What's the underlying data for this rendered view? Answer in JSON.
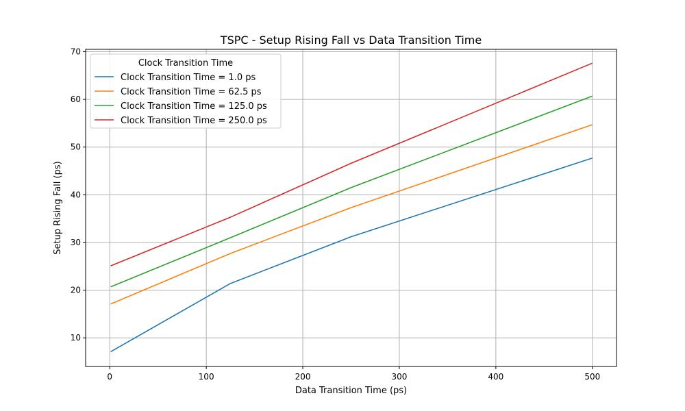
{
  "chart_data": {
    "type": "line",
    "title": "TSPC - Setup Rising Fall vs Data Transition Time",
    "xlabel": "Data Transition Time (ps)",
    "ylabel": "Setup Rising Fall (ps)",
    "x": [
      1.0,
      125.0,
      250.0,
      500.0
    ],
    "xlim": [
      -25,
      525
    ],
    "ylim": [
      4,
      70.5
    ],
    "xticks": [
      0,
      100,
      200,
      300,
      400,
      500
    ],
    "yticks": [
      10,
      20,
      30,
      40,
      50,
      60,
      70
    ],
    "grid": true,
    "legend": {
      "title": "Clock Transition Time",
      "position": "top-left"
    },
    "series": [
      {
        "name": "Clock Transition Time = 1.0 ps",
        "color": "#1f77b4",
        "values": [
          7.1,
          21.4,
          31.2,
          47.7
        ]
      },
      {
        "name": "Clock Transition Time = 62.5 ps",
        "color": "#ff7f0e",
        "values": [
          17.1,
          27.7,
          37.3,
          54.7
        ]
      },
      {
        "name": "Clock Transition Time = 125.0 ps",
        "color": "#2ca02c",
        "values": [
          20.7,
          31.0,
          41.5,
          60.7
        ]
      },
      {
        "name": "Clock Transition Time = 250.0 ps",
        "color": "#d62728",
        "values": [
          25.1,
          35.3,
          46.6,
          67.6
        ]
      }
    ]
  }
}
